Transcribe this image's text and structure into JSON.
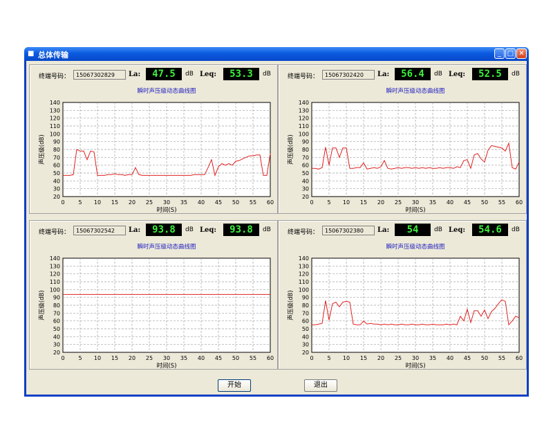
{
  "window": {
    "title": "总体传输",
    "minimize": "_",
    "maximize": "□",
    "close": "✕"
  },
  "labels": {
    "terminal": "终端号码：",
    "la": "La:",
    "leq": "Leq:",
    "unit": "dB"
  },
  "buttons": {
    "start": "开始",
    "exit": "退出"
  },
  "panels": [
    {
      "terminal_id": "15067302829",
      "la_value": "47.5",
      "leq_value": "53.3"
    },
    {
      "terminal_id": "15067302420",
      "la_value": "56.4",
      "leq_value": "52.5"
    },
    {
      "terminal_id": "15067302542",
      "la_value": "93.8",
      "leq_value": "93.8"
    },
    {
      "terminal_id": "15067302380",
      "la_value": "54",
      "leq_value": "54.6"
    }
  ],
  "chart_data": [
    {
      "type": "line",
      "title": "瞬时声压级动态曲线图",
      "xlabel": "时间(S)",
      "ylabel": "声压级(dB)",
      "xlim": [
        0,
        60
      ],
      "ylim": [
        20,
        140
      ],
      "grid": true,
      "xticks": [
        "0",
        "5",
        "10",
        "15",
        "20",
        "25",
        "30",
        "35",
        "40",
        "45",
        "50",
        "55",
        "60"
      ],
      "yticks": [
        "20",
        "30",
        "40",
        "50",
        "60",
        "70",
        "80",
        "90",
        "100",
        "110",
        "120",
        "130",
        "140"
      ],
      "color": "#e02020",
      "x": [
        0,
        1,
        2,
        3,
        4,
        5,
        6,
        7,
        8,
        9,
        10,
        11,
        12,
        13,
        14,
        15,
        16,
        17,
        18,
        19,
        20,
        21,
        22,
        23,
        24,
        25,
        26,
        27,
        28,
        29,
        30,
        31,
        32,
        33,
        34,
        35,
        36,
        37,
        38,
        39,
        40,
        41,
        42,
        43,
        44,
        45,
        46,
        47,
        48,
        49,
        50,
        51,
        52,
        53,
        54,
        55,
        56,
        57,
        58,
        59,
        60
      ],
      "y": [
        47,
        47,
        47,
        48,
        80,
        78,
        78,
        67,
        78,
        77,
        47,
        47,
        47,
        48,
        48,
        49,
        48,
        48,
        47,
        48,
        48,
        57,
        48,
        47,
        47,
        47,
        47,
        47,
        47,
        47,
        47,
        47,
        47,
        47,
        47,
        47,
        47,
        47,
        48,
        48,
        48,
        48,
        57,
        67,
        47,
        58,
        62,
        60,
        62,
        60,
        65,
        66,
        68,
        70,
        72,
        72,
        73,
        73,
        47,
        47,
        75
      ]
    },
    {
      "type": "line",
      "title": "瞬时声压级动态曲线图",
      "xlabel": "时间(S)",
      "ylabel": "声压级(dB)",
      "xlim": [
        0,
        60
      ],
      "ylim": [
        20,
        140
      ],
      "grid": true,
      "xticks": [
        "0",
        "5",
        "10",
        "15",
        "20",
        "25",
        "30",
        "35",
        "40",
        "45",
        "50",
        "55",
        "60"
      ],
      "yticks": [
        "20",
        "30",
        "40",
        "50",
        "60",
        "70",
        "80",
        "90",
        "100",
        "110",
        "120",
        "130",
        "140"
      ],
      "color": "#e02020",
      "x": [
        0,
        1,
        2,
        3,
        4,
        5,
        6,
        7,
        8,
        9,
        10,
        11,
        12,
        13,
        14,
        15,
        16,
        17,
        18,
        19,
        20,
        21,
        22,
        23,
        24,
        25,
        26,
        27,
        28,
        29,
        30,
        31,
        32,
        33,
        34,
        35,
        36,
        37,
        38,
        39,
        40,
        41,
        42,
        43,
        44,
        45,
        46,
        47,
        48,
        49,
        50,
        51,
        52,
        53,
        54,
        55,
        56,
        57,
        58,
        59,
        60
      ],
      "y": [
        56,
        56,
        55,
        57,
        83,
        60,
        82,
        82,
        70,
        82,
        82,
        56,
        56,
        57,
        57,
        63,
        55,
        56,
        57,
        56,
        58,
        66,
        56,
        55,
        56,
        57,
        56,
        57,
        57,
        56,
        57,
        56,
        57,
        56,
        57,
        56,
        56,
        57,
        56,
        57,
        57,
        56,
        58,
        57,
        66,
        67,
        56,
        73,
        75,
        68,
        64,
        79,
        85,
        84,
        83,
        82,
        78,
        88,
        57,
        55,
        64
      ]
    },
    {
      "type": "line",
      "title": "瞬时声压级动态曲线图",
      "xlabel": "时间(S)",
      "ylabel": "声压级(dB)",
      "xlim": [
        0,
        60
      ],
      "ylim": [
        20,
        140
      ],
      "grid": true,
      "xticks": [
        "0",
        "5",
        "10",
        "15",
        "20",
        "25",
        "30",
        "35",
        "40",
        "45",
        "50",
        "55",
        "60"
      ],
      "yticks": [
        "20",
        "30",
        "40",
        "50",
        "60",
        "70",
        "80",
        "90",
        "100",
        "110",
        "120",
        "130",
        "140"
      ],
      "color": "#e02020",
      "x": [
        0,
        5,
        10,
        15,
        20,
        25,
        30,
        35,
        40,
        45,
        50,
        55,
        60
      ],
      "y": [
        93.8,
        93.8,
        93.8,
        93.8,
        93.8,
        93.8,
        93.8,
        93.8,
        93.8,
        93.8,
        93.8,
        93.8,
        93.8
      ]
    },
    {
      "type": "line",
      "title": "瞬时声压级动态曲线图",
      "xlabel": "时间(S)",
      "ylabel": "声压级(dB)",
      "xlim": [
        0,
        60
      ],
      "ylim": [
        20,
        140
      ],
      "grid": true,
      "xticks": [
        "0",
        "5",
        "10",
        "15",
        "20",
        "25",
        "30",
        "35",
        "40",
        "45",
        "50",
        "55",
        "60"
      ],
      "yticks": [
        "20",
        "30",
        "40",
        "50",
        "60",
        "70",
        "80",
        "90",
        "100",
        "110",
        "120",
        "130",
        "140"
      ],
      "color": "#e02020",
      "x": [
        0,
        1,
        2,
        3,
        4,
        5,
        6,
        7,
        8,
        9,
        10,
        11,
        12,
        13,
        14,
        15,
        16,
        17,
        18,
        19,
        20,
        21,
        22,
        23,
        24,
        25,
        26,
        27,
        28,
        29,
        30,
        31,
        32,
        33,
        34,
        35,
        36,
        37,
        38,
        39,
        40,
        41,
        42,
        43,
        44,
        45,
        46,
        47,
        48,
        49,
        50,
        51,
        52,
        53,
        54,
        55,
        56,
        57,
        58,
        59,
        60
      ],
      "y": [
        55,
        55,
        56,
        57,
        86,
        61,
        82,
        84,
        78,
        84,
        85,
        84,
        56,
        55,
        55,
        60,
        56,
        57,
        56,
        56,
        55,
        56,
        55,
        56,
        55,
        55,
        56,
        55,
        55,
        56,
        55,
        55,
        56,
        55,
        55,
        56,
        55,
        55,
        55,
        56,
        55,
        56,
        55,
        66,
        60,
        75,
        58,
        73,
        73,
        66,
        74,
        63,
        72,
        76,
        82,
        87,
        85,
        55,
        60,
        66,
        64
      ]
    }
  ]
}
